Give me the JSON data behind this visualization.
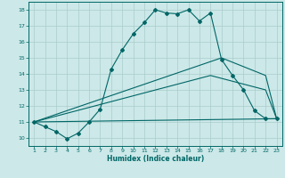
{
  "title": "",
  "xlabel": "Humidex (Indice chaleur)",
  "ylabel": "",
  "bg_color": "#cce8e8",
  "grid_color": "#aacccc",
  "line_color": "#006666",
  "x_ticks": [
    1,
    2,
    3,
    4,
    5,
    6,
    7,
    8,
    9,
    10,
    11,
    12,
    13,
    14,
    15,
    16,
    17,
    18,
    19,
    20,
    21,
    22,
    23
  ],
  "y_ticks": [
    10,
    11,
    12,
    13,
    14,
    15,
    16,
    17,
    18
  ],
  "xlim": [
    0.5,
    23.5
  ],
  "ylim": [
    9.5,
    18.5
  ],
  "curve1_x": [
    1,
    2,
    3,
    4,
    5,
    6,
    7,
    8,
    9,
    10,
    11,
    12,
    13,
    14,
    15,
    16,
    17,
    18,
    19,
    20,
    21,
    22,
    23
  ],
  "curve1_y": [
    11.0,
    10.7,
    10.4,
    9.95,
    10.3,
    11.0,
    11.8,
    14.3,
    15.5,
    16.5,
    17.2,
    18.0,
    17.8,
    17.75,
    18.0,
    17.3,
    17.8,
    14.9,
    13.9,
    13.0,
    11.7,
    11.2,
    11.2
  ],
  "curve2_x": [
    1,
    18,
    22,
    23
  ],
  "curve2_y": [
    11.0,
    15.0,
    13.9,
    11.2
  ],
  "curve3_x": [
    1,
    17,
    22,
    23
  ],
  "curve3_y": [
    11.0,
    13.9,
    13.0,
    11.2
  ],
  "curve4_x": [
    1,
    23
  ],
  "curve4_y": [
    11.0,
    11.2
  ]
}
